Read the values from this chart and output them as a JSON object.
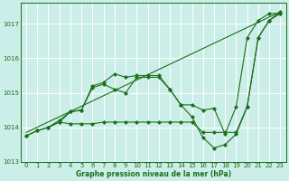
{
  "bg_color": "#cceee8",
  "grid_color": "#ffffff",
  "line_color": "#1a6e1a",
  "xlabel": "Graphe pression niveau de la mer (hPa)",
  "ylim": [
    1013.0,
    1017.6
  ],
  "xlim": [
    -0.5,
    23.5
  ],
  "yticks": [
    1013,
    1014,
    1015,
    1016,
    1017
  ],
  "xticks": [
    0,
    1,
    2,
    3,
    4,
    5,
    6,
    7,
    8,
    9,
    10,
    11,
    12,
    13,
    14,
    15,
    16,
    17,
    18,
    19,
    20,
    21,
    22,
    23
  ],
  "line1_x": [
    0,
    23
  ],
  "line1_y": [
    1013.85,
    1017.35
  ],
  "line2_x": [
    0,
    1,
    2,
    3,
    4,
    5,
    6,
    7,
    8,
    9,
    10,
    11,
    12,
    13,
    14,
    15,
    16,
    17,
    18,
    19,
    20,
    21,
    22,
    23
  ],
  "line2_y": [
    1013.75,
    1013.9,
    1014.0,
    1014.15,
    1014.45,
    1014.5,
    1015.2,
    1015.3,
    1015.55,
    1015.45,
    1015.5,
    1015.5,
    1015.5,
    1015.1,
    1014.65,
    1014.3,
    1013.7,
    1013.4,
    1013.5,
    1013.8,
    1014.6,
    1016.6,
    1017.1,
    1017.35
  ],
  "line3_x": [
    0,
    1,
    2,
    3,
    4,
    5,
    6,
    7,
    8,
    9,
    10,
    11,
    12,
    13,
    14,
    15,
    16,
    17,
    18,
    19,
    20,
    21,
    22,
    23
  ],
  "line3_y": [
    1013.75,
    1013.9,
    1014.0,
    1014.15,
    1014.1,
    1014.1,
    1014.1,
    1014.15,
    1014.15,
    1014.15,
    1014.15,
    1014.15,
    1014.15,
    1014.15,
    1014.15,
    1014.15,
    1013.85,
    1013.85,
    1013.85,
    1013.85,
    1014.6,
    1016.6,
    1017.1,
    1017.3
  ],
  "line4_x": [
    2,
    3,
    4,
    5,
    6,
    7,
    8,
    9,
    10,
    11,
    12,
    13,
    14,
    15,
    16,
    17,
    18,
    19,
    20,
    21,
    22,
    23
  ],
  "line4_y": [
    1014.0,
    1014.2,
    1014.45,
    1014.5,
    1015.15,
    1015.25,
    1015.1,
    1015.0,
    1015.45,
    1015.45,
    1015.45,
    1015.1,
    1014.65,
    1014.65,
    1014.5,
    1014.55,
    1013.8,
    1014.6,
    1016.6,
    1017.1,
    1017.3,
    1017.3
  ]
}
